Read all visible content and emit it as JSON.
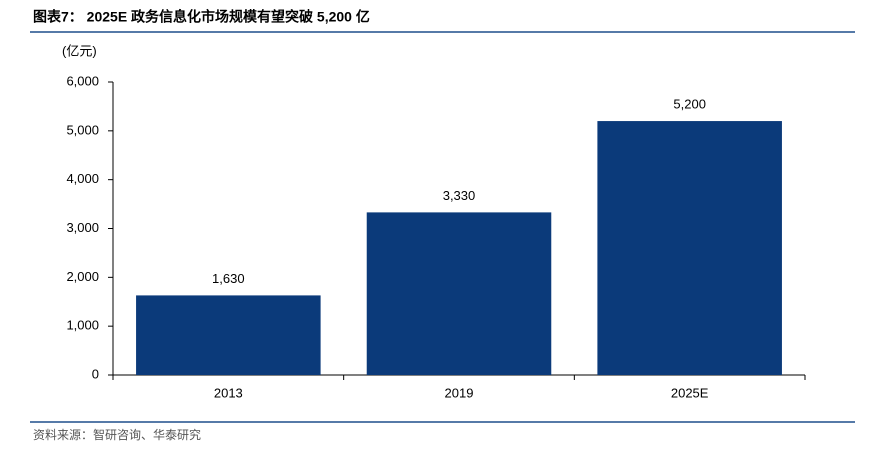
{
  "chart_data": {
    "type": "bar",
    "title": "图表7： 2025E 政务信息化市场规模有望突破 5,200 亿",
    "y_label": "(亿元)",
    "source": "资料来源：智研咨询、华泰研究",
    "categories": [
      "2013",
      "2019",
      "2025E"
    ],
    "values": [
      1630,
      3330,
      5200
    ],
    "value_labels": [
      "1,630",
      "3,330",
      "5,200"
    ],
    "color": "#0b3a7a",
    "ylim": [
      0,
      6000
    ],
    "yticks": [
      0,
      {
        "value": 1000,
        "label": "1,000"
      },
      {
        "value": 2000,
        "label": "2,000"
      },
      {
        "value": 3000,
        "label": "3,000"
      },
      {
        "value": 4000,
        "label": "4,000"
      },
      {
        "value": 5000,
        "label": "5,000"
      },
      {
        "value": 6000,
        "label": "6,000"
      }
    ],
    "grid": false
  }
}
